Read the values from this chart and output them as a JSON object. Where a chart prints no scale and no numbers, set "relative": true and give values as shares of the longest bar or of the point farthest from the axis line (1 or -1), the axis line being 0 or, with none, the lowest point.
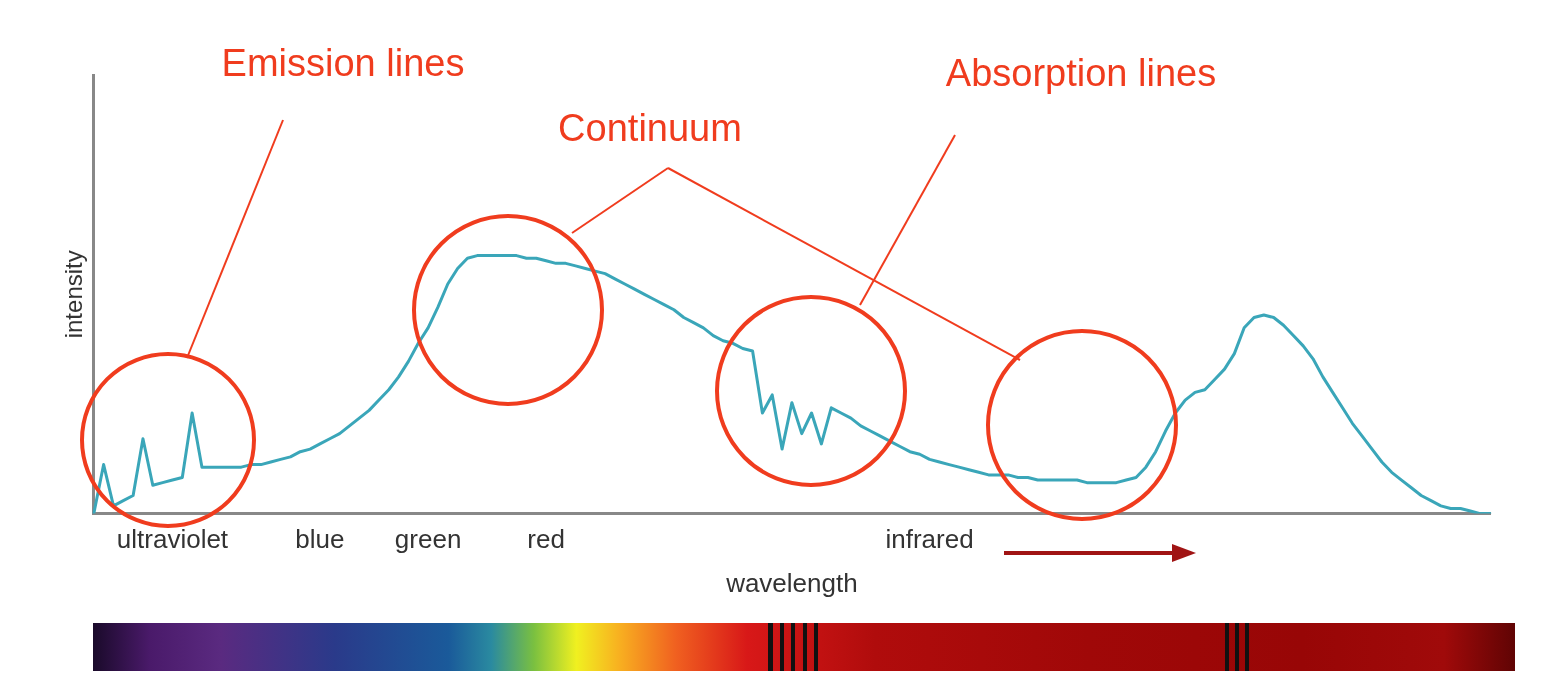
{
  "chart_data": {
    "type": "line",
    "xlabel": "wavelength",
    "ylabel": "intensity",
    "relative": true,
    "grid": false,
    "marker": "none",
    "categories": [
      null,
      null,
      null,
      null,
      null,
      null,
      null,
      null,
      "ultraviolet",
      null,
      null,
      null,
      null,
      null,
      null,
      null,
      null,
      null,
      null,
      null,
      null,
      null,
      null,
      "blue",
      null,
      null,
      null,
      null,
      null,
      null,
      null,
      null,
      null,
      null,
      "green",
      null,
      null,
      null,
      null,
      null,
      null,
      null,
      null,
      null,
      null,
      null,
      "red",
      null,
      null,
      null,
      null,
      null,
      null,
      null,
      null,
      null,
      null,
      null,
      null,
      null,
      null,
      null,
      null,
      null,
      null,
      null,
      null,
      null,
      null,
      null,
      null,
      null,
      null,
      null,
      null,
      null,
      null,
      null,
      null,
      null,
      null,
      null,
      null,
      null,
      null,
      "infrared",
      null,
      null,
      null,
      null,
      null,
      null,
      null,
      null,
      null,
      null,
      null,
      null,
      null,
      null,
      null,
      null,
      null,
      null,
      null,
      null,
      null,
      null,
      null,
      null,
      null,
      null,
      null,
      null,
      null,
      null,
      null,
      null,
      null,
      null,
      null,
      null,
      null,
      null,
      null,
      null,
      null,
      null,
      null,
      null,
      null,
      null,
      null,
      null,
      null,
      null,
      null,
      null,
      null,
      null,
      null,
      null,
      null
    ],
    "series": [
      {
        "color": "#3aa6b9",
        "values": [
          0,
          0.19,
          0.03,
          0.05,
          0.07,
          0.29,
          0.11,
          0.12,
          0.13,
          0.14,
          0.39,
          0.18,
          0.18,
          0.18,
          0.18,
          0.18,
          0.19,
          0.19,
          0.2,
          0.21,
          0.22,
          0.24,
          0.25,
          0.27,
          0.29,
          0.31,
          0.34,
          0.37,
          0.4,
          0.44,
          0.48,
          0.53,
          0.59,
          0.66,
          0.72,
          0.8,
          0.89,
          0.95,
          0.99,
          1,
          1,
          1,
          1,
          1,
          0.99,
          0.99,
          0.98,
          0.97,
          0.97,
          0.96,
          0.95,
          0.94,
          0.93,
          0.91,
          0.89,
          0.87,
          0.85,
          0.83,
          0.81,
          0.79,
          0.76,
          0.74,
          0.72,
          0.69,
          0.67,
          0.66,
          0.64,
          0.63,
          0.39,
          0.46,
          0.25,
          0.43,
          0.31,
          0.39,
          0.27,
          0.41,
          0.39,
          0.37,
          0.34,
          0.32,
          0.3,
          0.28,
          0.26,
          0.24,
          0.23,
          0.21,
          0.2,
          0.19,
          0.18,
          0.17,
          0.16,
          0.15,
          0.15,
          0.15,
          0.14,
          0.14,
          0.13,
          0.13,
          0.13,
          0.13,
          0.13,
          0.12,
          0.12,
          0.12,
          0.12,
          0.13,
          0.14,
          0.18,
          0.24,
          0.32,
          0.39,
          0.44,
          0.47,
          0.48,
          0.52,
          0.56,
          0.62,
          0.72,
          0.76,
          0.77,
          0.76,
          0.73,
          0.69,
          0.65,
          0.6,
          0.53,
          0.47,
          0.41,
          0.35,
          0.3,
          0.25,
          0.2,
          0.16,
          0.13,
          0.1,
          0.07,
          0.05,
          0.03,
          0.02,
          0.02,
          0.01,
          0,
          0
        ]
      }
    ],
    "annotations": [
      "Emission lines",
      "Continuum",
      "Absorption lines"
    ]
  }
}
